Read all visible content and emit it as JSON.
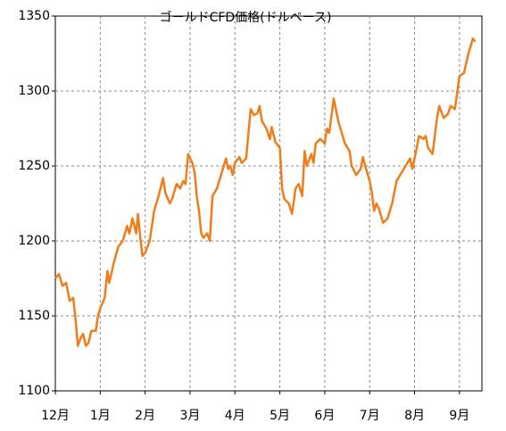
{
  "chart_data": {
    "type": "line",
    "title": "ゴールドCFD価格(ドルベース)",
    "x": [
      0.0,
      0.08,
      0.16,
      0.24,
      0.32,
      0.4,
      0.46,
      0.5,
      0.56,
      0.62,
      0.68,
      0.74,
      0.8,
      0.9,
      0.95,
      1.0,
      1.1,
      1.16,
      1.2,
      1.3,
      1.4,
      1.5,
      1.6,
      1.65,
      1.72,
      1.8,
      1.84,
      1.9,
      1.94,
      2.0,
      2.1,
      2.2,
      2.3,
      2.4,
      2.45,
      2.55,
      2.6,
      2.7,
      2.78,
      2.85,
      2.9,
      2.96,
      3.05,
      3.1,
      3.15,
      3.2,
      3.25,
      3.3,
      3.38,
      3.44,
      3.5,
      3.6,
      3.7,
      3.8,
      3.85,
      3.9,
      3.95,
      4.0,
      4.1,
      4.15,
      4.25,
      4.35,
      4.42,
      4.5,
      4.55,
      4.6,
      4.7,
      4.78,
      4.82,
      4.9,
      5.0,
      5.05,
      5.1,
      5.2,
      5.27,
      5.35,
      5.42,
      5.5,
      5.55,
      5.6,
      5.7,
      5.75,
      5.8,
      5.9,
      6.0,
      6.05,
      6.1,
      6.2,
      6.3,
      6.35,
      6.45,
      6.55,
      6.6,
      6.7,
      6.8,
      6.85,
      6.9,
      7.0,
      7.05,
      7.1,
      7.15,
      7.2,
      7.3,
      7.4,
      7.5,
      7.6,
      7.7,
      7.8,
      7.9,
      7.95,
      8.05,
      8.1,
      8.2,
      8.25,
      8.3,
      8.4,
      8.5,
      8.55,
      8.65,
      8.75,
      8.8,
      8.9,
      9.0,
      9.1,
      9.2,
      9.3,
      9.35
    ],
    "values": [
      1175,
      1178,
      1170,
      1172,
      1160,
      1162,
      1145,
      1130,
      1135,
      1138,
      1130,
      1132,
      1140,
      1140,
      1150,
      1155,
      1162,
      1180,
      1172,
      1185,
      1196,
      1200,
      1210,
      1205,
      1215,
      1205,
      1218,
      1200,
      1190,
      1192,
      1200,
      1220,
      1230,
      1242,
      1232,
      1225,
      1228,
      1238,
      1235,
      1240,
      1238,
      1258,
      1252,
      1246,
      1230,
      1220,
      1205,
      1202,
      1205,
      1200,
      1230,
      1235,
      1245,
      1255,
      1248,
      1250,
      1244,
      1252,
      1256,
      1252,
      1255,
      1288,
      1284,
      1285,
      1290,
      1280,
      1275,
      1268,
      1276,
      1266,
      1262,
      1235,
      1228,
      1225,
      1218,
      1235,
      1238,
      1230,
      1260,
      1250,
      1258,
      1252,
      1265,
      1268,
      1265,
      1275,
      1272,
      1295,
      1280,
      1275,
      1265,
      1260,
      1250,
      1244,
      1248,
      1256,
      1250,
      1240,
      1232,
      1220,
      1225,
      1222,
      1212,
      1215,
      1225,
      1240,
      1245,
      1250,
      1255,
      1248,
      1262,
      1270,
      1268,
      1270,
      1262,
      1258,
      1282,
      1290,
      1282,
      1285,
      1290,
      1288,
      1310,
      1312,
      1325,
      1335,
      1333
    ],
    "color": "#f07d1a",
    "xlim": [
      0,
      9.5
    ],
    "xticks": [
      {
        "value": 0,
        "label": "12月"
      },
      {
        "value": 1,
        "label": "1月"
      },
      {
        "value": 2,
        "label": "2月"
      },
      {
        "value": 3,
        "label": "3月"
      },
      {
        "value": 4,
        "label": "4月"
      },
      {
        "value": 5,
        "label": "5月"
      },
      {
        "value": 6,
        "label": "6月"
      },
      {
        "value": 7,
        "label": "7月"
      },
      {
        "value": 8,
        "label": "8月"
      },
      {
        "value": 9,
        "label": "9月"
      }
    ],
    "ylim": [
      1100,
      1350
    ],
    "yticks": [
      1100,
      1150,
      1200,
      1250,
      1300,
      1350
    ],
    "grid": true
  }
}
